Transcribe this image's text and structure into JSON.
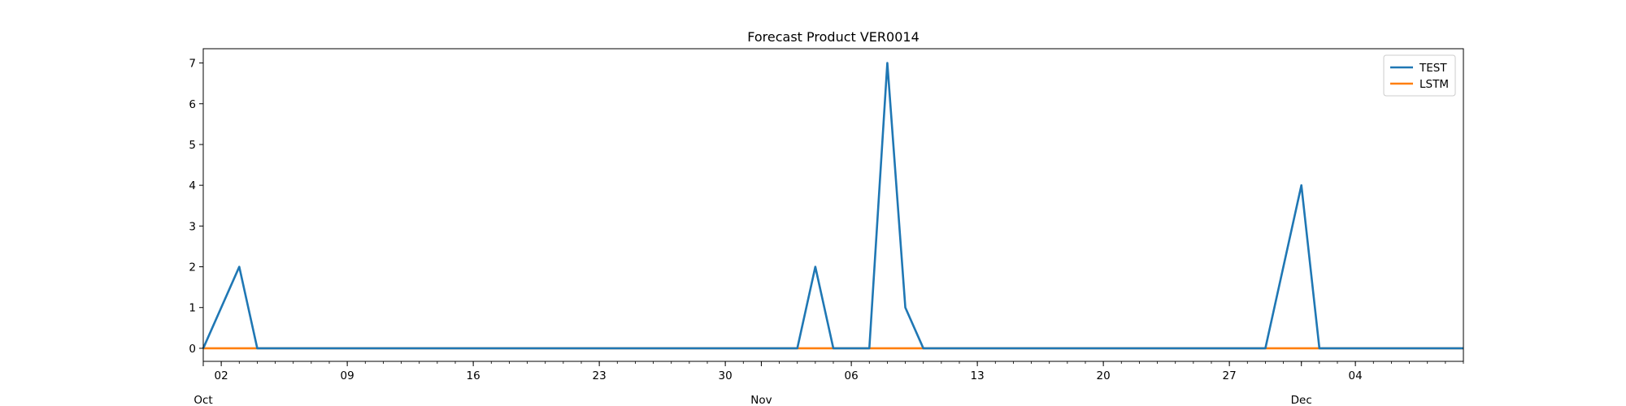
{
  "chart_data": {
    "type": "line",
    "title": "Forecast Product VER0014",
    "xlabel": "",
    "ylabel": "",
    "x_axis": {
      "kind": "date",
      "range": [
        "2023-10-01",
        "2023-12-10"
      ],
      "major_ticks": [
        {
          "date": "2023-10-02",
          "label": "02"
        },
        {
          "date": "2023-10-09",
          "label": "09"
        },
        {
          "date": "2023-10-16",
          "label": "16"
        },
        {
          "date": "2023-10-23",
          "label": "23"
        },
        {
          "date": "2023-10-30",
          "label": "30"
        },
        {
          "date": "2023-11-06",
          "label": "06"
        },
        {
          "date": "2023-11-13",
          "label": "13"
        },
        {
          "date": "2023-11-20",
          "label": "20"
        },
        {
          "date": "2023-11-27",
          "label": "27"
        },
        {
          "date": "2023-12-04",
          "label": "04"
        }
      ],
      "month_labels": [
        {
          "date": "2023-10-01",
          "label": "Oct"
        },
        {
          "date": "2023-11-01",
          "label": "Nov"
        },
        {
          "date": "2023-12-01",
          "label": "Dec"
        }
      ]
    },
    "ylim": [
      -0.32,
      7.35
    ],
    "yticks": [
      0,
      1,
      2,
      3,
      4,
      5,
      6,
      7
    ],
    "grid": false,
    "legend": "top-right",
    "series": [
      {
        "name": "TEST",
        "color": "#1f77b4",
        "points": [
          {
            "x": "2023-10-01",
            "y": 0
          },
          {
            "x": "2023-10-03",
            "y": 2
          },
          {
            "x": "2023-10-04",
            "y": 0
          },
          {
            "x": "2023-11-03",
            "y": 0
          },
          {
            "x": "2023-11-04",
            "y": 2
          },
          {
            "x": "2023-11-05",
            "y": 0
          },
          {
            "x": "2023-11-07",
            "y": 0
          },
          {
            "x": "2023-11-08",
            "y": 7
          },
          {
            "x": "2023-11-09",
            "y": 1
          },
          {
            "x": "2023-11-10",
            "y": 0
          },
          {
            "x": "2023-11-29",
            "y": 0
          },
          {
            "x": "2023-12-01",
            "y": 4
          },
          {
            "x": "2023-12-02",
            "y": 0
          },
          {
            "x": "2023-12-10",
            "y": 0
          }
        ]
      },
      {
        "name": "LSTM",
        "color": "#ff7f0e",
        "points": [
          {
            "x": "2023-10-01",
            "y": 0
          },
          {
            "x": "2023-12-10",
            "y": 0
          }
        ]
      }
    ]
  }
}
